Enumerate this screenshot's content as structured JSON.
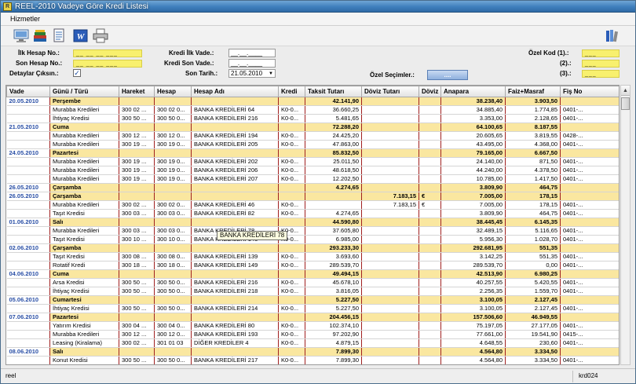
{
  "window": {
    "title": "REEL-2010 Vadeye Göre Kredi Listesi",
    "app_icon": "R"
  },
  "menu": {
    "items": [
      "Hizmetler"
    ]
  },
  "toolbar": {
    "icons": [
      "monitor-icon",
      "books-icon",
      "document-icon",
      "word-icon",
      "printer-icon",
      "books-stack-icon"
    ]
  },
  "filters": {
    "ilk_hesap_label": "İlk Hesap No.:",
    "ilk_hesap_value": "__ __ __ ___",
    "son_hesap_label": "Son Hesap No.:",
    "son_hesap_value": "__ __ __ ___",
    "detaylar_label": "Detaylar Çıksın.:",
    "detaylar_checked": true,
    "kredi_ilk_label": "Kredi İlk Vade.:",
    "kredi_ilk_value": "__.__.____",
    "kredi_son_label": "Kredi Son Vade.:",
    "kredi_son_value": "__.__.____",
    "son_tarih_label": "Son Tarih.:",
    "son_tarih_value": "21.05.2010",
    "ozel_secim_label": "Özel Seçimler.:",
    "ozel_secim_button": "....",
    "ozel_kod1_label": "Özel Kod (1).:",
    "ozel_kod1_value": "___",
    "ozel_kod2_label": "(2).:",
    "ozel_kod2_value": "___",
    "ozel_kod3_label": "(3).:",
    "ozel_kod3_value": "___"
  },
  "table": {
    "headers": [
      "Vade",
      "Günü / Türü",
      "Hareket",
      "Hesap",
      "Hesap Adı",
      "Kredi",
      "Taksit Tutarı",
      "Döviz Tutarı",
      "Döviz",
      "Anapara",
      "Faiz+Masraf",
      "Fiş No"
    ],
    "rows": [
      {
        "type": "day",
        "cells": [
          "20.05.2010",
          "Perşembe",
          "",
          "",
          "",
          "",
          "42.141,90",
          "",
          "",
          "38.238,40",
          "3.903,50",
          ""
        ]
      },
      {
        "type": "item",
        "cells": [
          "",
          "Murabba Kredileri",
          "300 02 ...",
          "300 02 0...",
          "BANKA KREDİLERİ 64",
          "K0-0...",
          "36.660,25",
          "",
          "",
          "34.885,40",
          "1.774,85",
          "0401-..."
        ]
      },
      {
        "type": "item",
        "cells": [
          "",
          "İhtiyaç Kredisi",
          "300 50 ...",
          "300 50 0...",
          "BANKA KREDİLERİ 216",
          "K0-0...",
          "5.481,65",
          "",
          "",
          "3.353,00",
          "2.128,65",
          "0401-..."
        ]
      },
      {
        "type": "day",
        "cells": [
          "21.05.2010",
          "Cuma",
          "",
          "",
          "",
          "",
          "72.288,20",
          "",
          "",
          "64.100,65",
          "8.187,55",
          ""
        ]
      },
      {
        "type": "item",
        "cells": [
          "",
          "Murabba Kredileri",
          "300 12 ...",
          "300 12 0...",
          "BANKA KREDİLERİ 194",
          "K0-0...",
          "24.425,20",
          "",
          "",
          "20.605,65",
          "3.819,55",
          "0428-..."
        ]
      },
      {
        "type": "item",
        "cells": [
          "",
          "Murabba Kredileri",
          "300 19 ...",
          "300 19 0...",
          "BANKA KREDİLERİ 205",
          "K0-0...",
          "47.863,00",
          "",
          "",
          "43.495,00",
          "4.368,00",
          "0401-..."
        ]
      },
      {
        "type": "day",
        "cells": [
          "24.05.2010",
          "Pazartesi",
          "",
          "",
          "",
          "",
          "85.832,50",
          "",
          "",
          "79.165,00",
          "6.667,50",
          ""
        ]
      },
      {
        "type": "item",
        "cells": [
          "",
          "Murabba Kredileri",
          "300 19 ...",
          "300 19 0...",
          "BANKA KREDİLERİ 202",
          "K0-0...",
          "25.011,50",
          "",
          "",
          "24.140,00",
          "871,50",
          "0401-..."
        ]
      },
      {
        "type": "item",
        "cells": [
          "",
          "Murabba Kredileri",
          "300 19 ...",
          "300 19 0...",
          "BANKA KREDİLERİ 206",
          "K0-0...",
          "48.618,50",
          "",
          "",
          "44.240,00",
          "4.378,50",
          "0401-..."
        ]
      },
      {
        "type": "item",
        "cells": [
          "",
          "Murabba Kredileri",
          "300 19 ...",
          "300 19 0...",
          "BANKA KREDİLERİ 207",
          "K0-0...",
          "12.202,50",
          "",
          "",
          "10.785,00",
          "1.417,50",
          "0401-..."
        ]
      },
      {
        "type": "day",
        "cells": [
          "26.05.2010",
          "Çarşamba",
          "",
          "",
          "",
          "",
          "4.274,65",
          "",
          "",
          "3.809,90",
          "464,75",
          ""
        ]
      },
      {
        "type": "day",
        "cells": [
          "26.05.2010",
          "Çarşamba",
          "",
          "",
          "",
          "",
          "",
          "7.183,15",
          "€",
          "7.005,00",
          "178,15",
          ""
        ]
      },
      {
        "type": "item",
        "cells": [
          "",
          "Murabba Kredileri",
          "300 02 ...",
          "300 02 0...",
          "BANKA KREDİLERİ 46",
          "K0-0...",
          "",
          "7.183,15",
          "€",
          "7.005,00",
          "178,15",
          "0401-..."
        ]
      },
      {
        "type": "item",
        "cells": [
          "",
          "Taşıt Kredisi",
          "300 03 ...",
          "300 03 0...",
          "BANKA KREDİLERİ 82",
          "K0-0...",
          "4.274,65",
          "",
          "",
          "3.809,90",
          "464,75",
          "0401-..."
        ]
      },
      {
        "type": "day",
        "cells": [
          "01.06.2010",
          "Salı",
          "",
          "",
          "",
          "",
          "44.590,80",
          "",
          "",
          "38.445,45",
          "6.145,35",
          ""
        ]
      },
      {
        "type": "item",
        "cells": [
          "",
          "Murabba Kredileri",
          "300 03 ...",
          "300 03 0...",
          "BANKA KREDİLERİ 78",
          "K0-0...",
          "37.605,80",
          "",
          "",
          "32.489,15",
          "5.116,65",
          "0401-..."
        ]
      },
      {
        "type": "item",
        "cells": [
          "",
          "Taşıt Kredisi",
          "300 10 ...",
          "300 10 0...",
          "BANKA KREDİLERİ 146",
          "K0-0...",
          "6.985,00",
          "",
          "",
          "5.956,30",
          "1.028,70",
          "0401-..."
        ]
      },
      {
        "type": "day",
        "cells": [
          "02.06.2010",
          "Çarşamba",
          "",
          "",
          "",
          "",
          "293.233,30",
          "",
          "",
          "292.681,95",
          "551,35",
          ""
        ]
      },
      {
        "type": "item",
        "cells": [
          "",
          "Taşıt Kredisi",
          "300 08 ...",
          "300 08 0...",
          "BANKA KREDİLERİ 139",
          "K0-0...",
          "3.693,60",
          "",
          "",
          "3.142,25",
          "551,35",
          "0401-..."
        ]
      },
      {
        "type": "item",
        "cells": [
          "",
          "Rotatif Kredi",
          "300 18 ...",
          "300 18 0...",
          "BANKA KREDİLERİ 149",
          "K0-0...",
          "289.539,70",
          "",
          "",
          "289.539,70",
          "0,00",
          "0401-..."
        ]
      },
      {
        "type": "day",
        "cells": [
          "04.06.2010",
          "Cuma",
          "",
          "",
          "",
          "",
          "49.494,15",
          "",
          "",
          "42.513,90",
          "6.980,25",
          ""
        ]
      },
      {
        "type": "item",
        "cells": [
          "",
          "Arsa Kredisi",
          "300 50 ...",
          "300 50 0...",
          "BANKA KREDİLERİ 216",
          "K0-0...",
          "45.678,10",
          "",
          "",
          "40.257,55",
          "5.420,55",
          "0401-..."
        ]
      },
      {
        "type": "item",
        "cells": [
          "",
          "İhtiyaç Kredisi",
          "300 50 ...",
          "300 50 0...",
          "BANKA KREDİLERİ 218",
          "K0-0...",
          "3.816,05",
          "",
          "",
          "2.256,35",
          "1.559,70",
          "0401-..."
        ]
      },
      {
        "type": "day",
        "cells": [
          "05.06.2010",
          "Cumartesi",
          "",
          "",
          "",
          "",
          "5.227,50",
          "",
          "",
          "3.100,05",
          "2.127,45",
          ""
        ]
      },
      {
        "type": "item",
        "cells": [
          "",
          "İhtiyaç Kredisi",
          "300 50 ...",
          "300 50 0...",
          "BANKA KREDİLERİ 214",
          "K0-0...",
          "5.227,50",
          "",
          "",
          "3.100,05",
          "2.127,45",
          "0401-..."
        ]
      },
      {
        "type": "day",
        "cells": [
          "07.06.2010",
          "Pazartesi",
          "",
          "",
          "",
          "",
          "204.456,15",
          "",
          "",
          "157.506,60",
          "46.949,55",
          ""
        ]
      },
      {
        "type": "item",
        "cells": [
          "",
          "Yatırım Kredisi",
          "300 04 ...",
          "300 04 0...",
          "BANKA KREDİLERİ 80",
          "K0-0...",
          "102.374,10",
          "",
          "",
          "75.197,05",
          "27.177,05",
          "0401-..."
        ]
      },
      {
        "type": "item",
        "cells": [
          "",
          "Murabba Kredileri",
          "300 12 ...",
          "300 12 0...",
          "BANKA KREDİLERİ 193",
          "K0-0...",
          "97.202,90",
          "",
          "",
          "77.661,00",
          "19.541,90",
          "0415-..."
        ]
      },
      {
        "type": "item",
        "cells": [
          "",
          "Leasing (Kiralama)",
          "300 02 ...",
          "301 01 03",
          "DİĞER KREDİLER 4",
          "K0-0...",
          "4.879,15",
          "",
          "",
          "4.648,55",
          "230,60",
          "0401-..."
        ]
      },
      {
        "type": "day",
        "cells": [
          "08.06.2010",
          "Salı",
          "",
          "",
          "",
          "",
          "7.899,30",
          "",
          "",
          "4.564,80",
          "3.334,50",
          ""
        ]
      },
      {
        "type": "item",
        "cells": [
          "",
          "Konut Kredisi",
          "300 50 ...",
          "300 50 0...",
          "BANKA KREDİLERİ 217",
          "K0-0...",
          "7.899,30",
          "",
          "",
          "4.564,80",
          "3.334,50",
          "0401-..."
        ]
      }
    ]
  },
  "tooltip": {
    "text": "BANKA KREDİLERİ 78"
  },
  "status": {
    "left": "reel",
    "right": "krd024"
  }
}
